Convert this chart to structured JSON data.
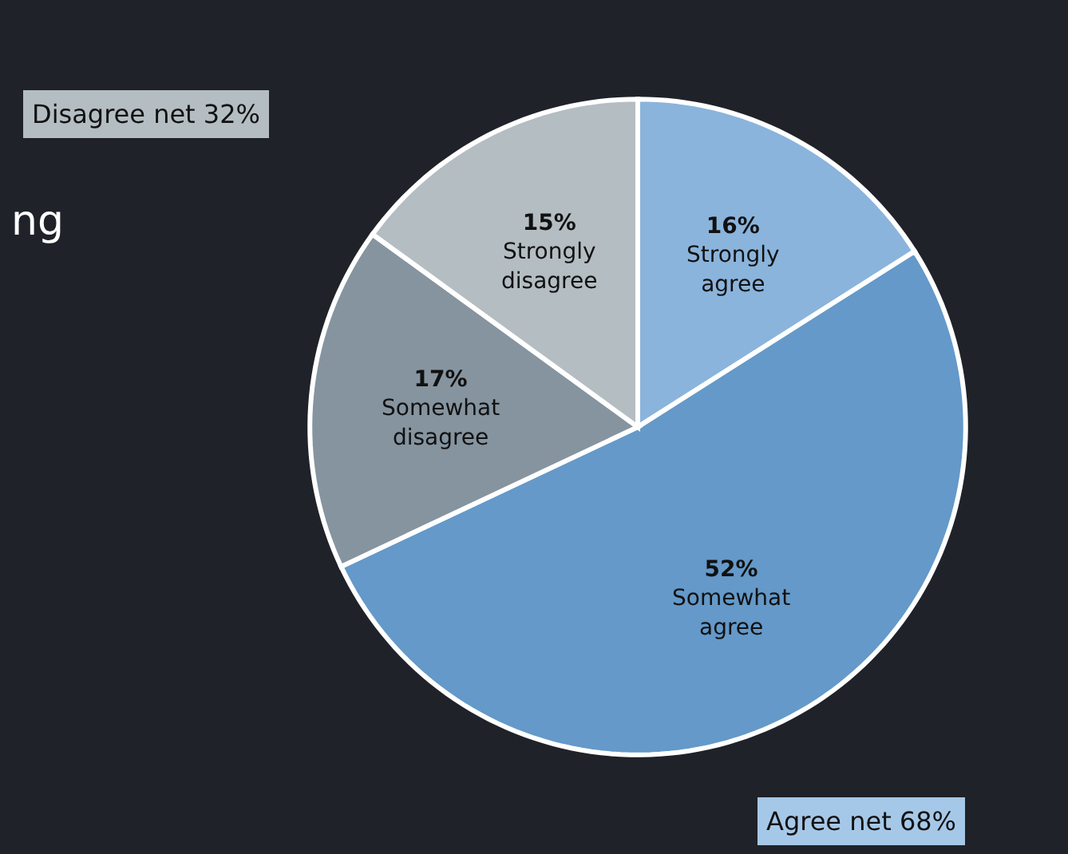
{
  "chart_data": {
    "type": "pie",
    "categories": [
      "Strongly agree",
      "Somewhat agree",
      "Somewhat disagree",
      "Strongly disagree"
    ],
    "values": [
      16,
      52,
      17,
      15
    ],
    "value_labels": [
      "16%",
      "52%",
      "17%",
      "15%"
    ],
    "colors": [
      "#8ab4dc",
      "#6499c9",
      "#85949f",
      "#b4bdc2"
    ],
    "annotations": [
      "Disagree net 32%",
      "Agree net 68%",
      "ng"
    ]
  }
}
